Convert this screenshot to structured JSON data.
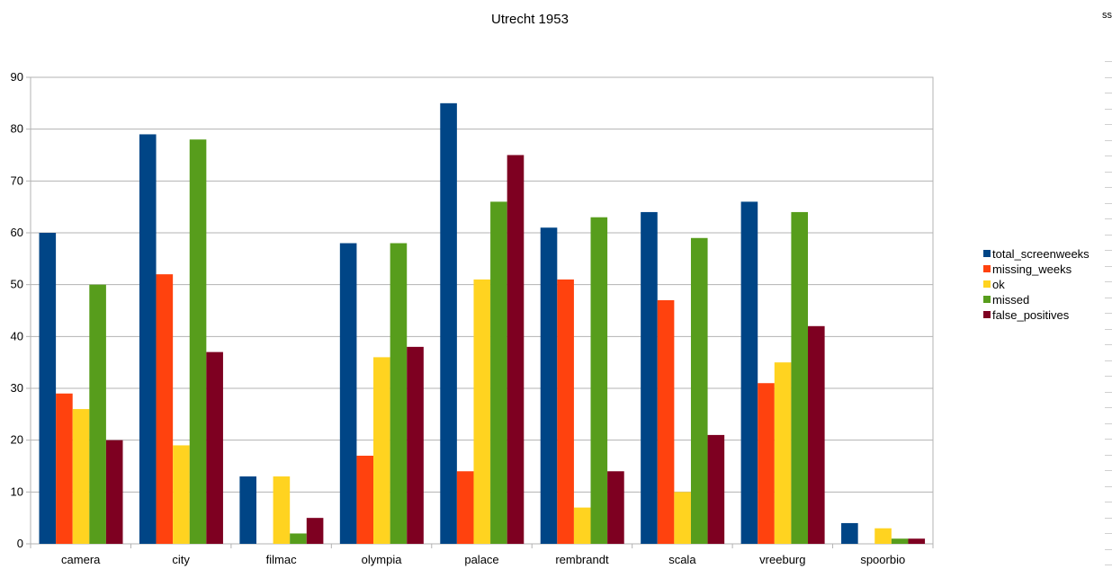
{
  "chart_data": {
    "type": "bar",
    "title": "Utrecht 1953",
    "categories": [
      "camera",
      "city",
      "filmac",
      "olympia",
      "palace",
      "rembrandt",
      "scala",
      "vreeburg",
      "spoorbio"
    ],
    "series": [
      {
        "name": "total_screenweeks",
        "color": "#004586",
        "values": [
          60,
          79,
          13,
          58,
          85,
          61,
          64,
          66,
          4
        ]
      },
      {
        "name": "missing_weeks",
        "color": "#ff420e",
        "values": [
          29,
          52,
          0,
          17,
          14,
          51,
          47,
          31,
          0
        ]
      },
      {
        "name": "ok",
        "color": "#ffd320",
        "values": [
          26,
          19,
          13,
          36,
          51,
          7,
          10,
          35,
          3
        ]
      },
      {
        "name": "missed",
        "color": "#579d1c",
        "values": [
          50,
          78,
          2,
          58,
          66,
          63,
          59,
          64,
          1
        ]
      },
      {
        "name": "false_positives",
        "color": "#7e0021",
        "values": [
          20,
          37,
          5,
          38,
          75,
          14,
          21,
          42,
          1
        ]
      }
    ],
    "ylim": [
      0,
      90
    ],
    "yticks": [
      0,
      10,
      20,
      30,
      40,
      50,
      60,
      70,
      80,
      90
    ],
    "grid": true,
    "legend": "right",
    "xlabel": "",
    "ylabel": ""
  },
  "edge_text": "ss"
}
